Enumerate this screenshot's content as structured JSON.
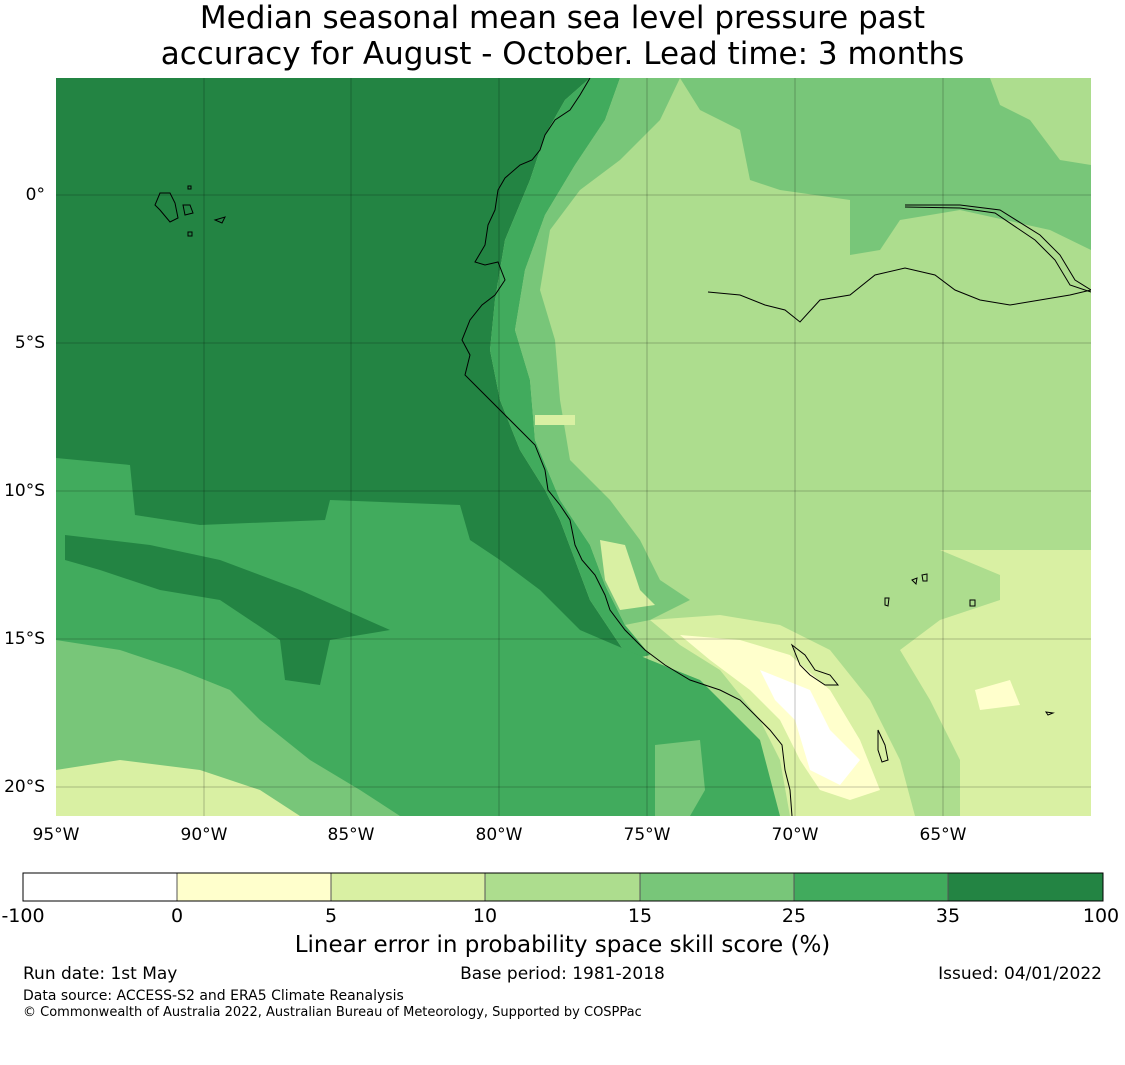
{
  "title_line1": "Median seasonal mean sea level pressure past",
  "title_line2": "accuracy for August - October. Lead time: 3 months",
  "map": {
    "lon_labels": [
      "95°W",
      "90°W",
      "85°W",
      "80°W",
      "75°W",
      "70°W",
      "65°W"
    ],
    "lat_labels": [
      "0°",
      "5°S",
      "10°S",
      "15°S",
      "20°S"
    ],
    "extent": {
      "lon": [
        -95,
        -60
      ],
      "lat": [
        -21,
        4
      ]
    },
    "grid": true
  },
  "colors": {
    "c_m100_0": "#ffffff",
    "c_0_5": "#ffffcc",
    "c_5_10": "#d9f0a3",
    "c_10_15": "#addd8e",
    "c_15_25": "#78c679",
    "c_25_35": "#41ab5d",
    "c_35_100": "#238443"
  },
  "colorbar": {
    "ticks": [
      "-100",
      "0",
      "5",
      "10",
      "15",
      "25",
      "35",
      "100"
    ],
    "label": "Linear error in probability space skill score (%)"
  },
  "footer": {
    "run_date": "Run date: 1st May",
    "base_period": "Base period: 1981-2018",
    "issued": "Issued: 04/01/2022",
    "data_source": "Data source: ACCESS-S2 and ERA5 Climate Reanalysis",
    "copyright": "© Commonwealth of Australia 2022, Australian Bureau of Meteorology, Supported by COSPPac"
  }
}
